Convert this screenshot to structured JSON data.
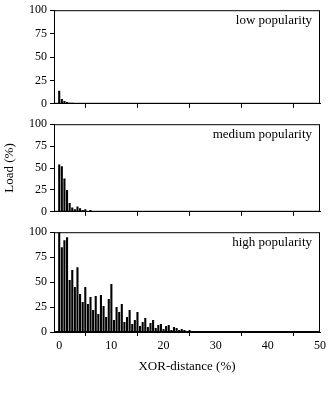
{
  "chart_data": [
    {
      "type": "bar",
      "title": "low popularity",
      "x": [
        0,
        0.5,
        1,
        1.5,
        2,
        2.5,
        3,
        3.5,
        4,
        4.5,
        5
      ],
      "values": [
        14,
        5,
        3,
        2,
        1,
        1,
        0.5,
        0.5,
        0.5,
        0,
        0.5
      ],
      "color": "#000000",
      "xlim": [
        -1,
        50
      ],
      "xticks": [
        0,
        10,
        20,
        30,
        40,
        50
      ],
      "ylim": [
        0,
        100
      ],
      "yticks": [
        0,
        25,
        50,
        75,
        100
      ],
      "grid": false,
      "tick_labels": "y"
    },
    {
      "type": "bar",
      "title": "medium popularity",
      "y_label": "Load (%)",
      "x": [
        0,
        0.5,
        1,
        1.5,
        2,
        2.5,
        3,
        3.5,
        4,
        4.5,
        5,
        5.5,
        6,
        6.5,
        7
      ],
      "values": [
        54,
        52,
        38,
        25,
        10,
        5,
        3,
        6,
        4,
        2,
        3,
        1,
        2,
        1,
        0.5
      ],
      "color": "#000000",
      "xlim": [
        -1,
        50
      ],
      "xticks": [
        0,
        10,
        20,
        30,
        40,
        50
      ],
      "ylim": [
        0,
        100
      ],
      "yticks": [
        0,
        25,
        50,
        75,
        100
      ],
      "grid": false,
      "tick_labels": "y"
    },
    {
      "type": "bar",
      "title": "high popularity",
      "x_label": "XOR-distance (%)",
      "x": [
        0,
        0.5,
        1,
        1.5,
        2,
        2.5,
        3,
        3.5,
        4,
        4.5,
        5,
        5.5,
        6,
        6.5,
        7,
        7.5,
        8,
        8.5,
        9,
        9.5,
        10,
        10.5,
        11,
        11.5,
        12,
        12.5,
        13,
        13.5,
        14,
        14.5,
        15,
        15.5,
        16,
        16.5,
        17,
        17.5,
        18,
        18.5,
        19,
        19.5,
        20,
        20.5,
        21,
        21.5,
        22,
        22.5,
        23,
        23.5,
        24,
        24.5,
        25,
        25.5,
        26,
        26.5,
        27,
        27.5,
        28,
        28.5,
        29,
        29.5,
        30
      ],
      "values": [
        100,
        85,
        92,
        95,
        52,
        62,
        45,
        65,
        38,
        30,
        45,
        28,
        35,
        22,
        36,
        18,
        37,
        26,
        15,
        33,
        48,
        12,
        25,
        20,
        28,
        10,
        15,
        22,
        8,
        12,
        20,
        6,
        10,
        14,
        5,
        9,
        12,
        4,
        7,
        8,
        3,
        6,
        7,
        2,
        5,
        4,
        2,
        3,
        2,
        1,
        2,
        1,
        1,
        1,
        1,
        0.5,
        0.5,
        0.5,
        0.5,
        0,
        0.5
      ],
      "color": "#000000",
      "xlim": [
        -1,
        50
      ],
      "xticks": [
        0,
        10,
        20,
        30,
        40,
        50
      ],
      "ylim": [
        0,
        100
      ],
      "yticks": [
        0,
        25,
        50,
        75,
        100
      ],
      "grid": false
    }
  ]
}
